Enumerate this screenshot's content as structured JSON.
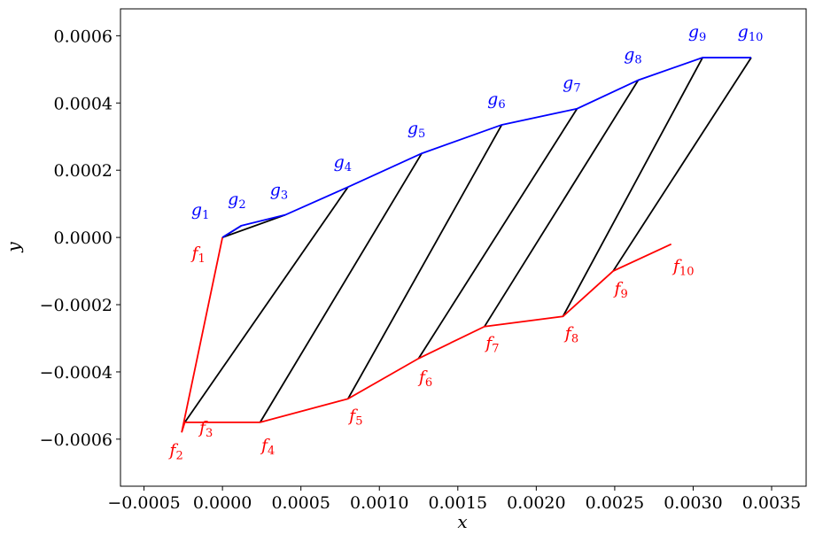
{
  "chart_data": {
    "type": "line",
    "xlabel": "x",
    "ylabel": "y",
    "xlim": [
      -0.00065,
      0.00372
    ],
    "ylim": [
      -0.00074,
      0.00068
    ],
    "x_ticks": [
      -0.0005,
      0.0,
      0.0005,
      0.001,
      0.0015,
      0.002,
      0.0025,
      0.003,
      0.0035
    ],
    "x_tick_labels": [
      "−0.0005",
      "0.0000",
      "0.0005",
      "0.0010",
      "0.0015",
      "0.0020",
      "0.0025",
      "0.0030",
      "0.0035"
    ],
    "y_ticks": [
      -0.0006,
      -0.0004,
      -0.0002,
      0.0,
      0.0002,
      0.0004,
      0.0006
    ],
    "y_tick_labels": [
      "−0.0006",
      "−0.0004",
      "−0.0002",
      "0.0000",
      "0.0002",
      "0.0004",
      "0.0006"
    ],
    "grid": false,
    "legend": "none",
    "series": [
      {
        "label_prefix": "f",
        "color": "#ff0000",
        "points": [
          {
            "label": "1",
            "x": 0.0,
            "y": 0.0
          },
          {
            "label": "2",
            "x": -0.00026,
            "y": -0.00058
          },
          {
            "label": "3",
            "x": -0.00024,
            "y": -0.00055
          },
          {
            "label": "4",
            "x": 0.00024,
            "y": -0.00055
          },
          {
            "label": "5",
            "x": 0.0008,
            "y": -0.00048
          },
          {
            "label": "6",
            "x": 0.00125,
            "y": -0.00036
          },
          {
            "label": "7",
            "x": 0.00167,
            "y": -0.000265
          },
          {
            "label": "8",
            "x": 0.00217,
            "y": -0.000235
          },
          {
            "label": "9",
            "x": 0.00249,
            "y": -0.0001
          },
          {
            "label": "10",
            "x": 0.00286,
            "y": -2e-05
          }
        ]
      },
      {
        "label_prefix": "g",
        "color": "#0000ff",
        "points": [
          {
            "label": "1",
            "x": 0.0,
            "y": 0.0
          },
          {
            "label": "2",
            "x": 0.00012,
            "y": 3.5e-05
          },
          {
            "label": "3",
            "x": 0.0004,
            "y": 6.7e-05
          },
          {
            "label": "4",
            "x": 0.0008,
            "y": 0.00015
          },
          {
            "label": "5",
            "x": 0.00127,
            "y": 0.00025
          },
          {
            "label": "6",
            "x": 0.00178,
            "y": 0.000335
          },
          {
            "label": "7",
            "x": 0.00226,
            "y": 0.000383
          },
          {
            "label": "8",
            "x": 0.00265,
            "y": 0.000468
          },
          {
            "label": "9",
            "x": 0.00306,
            "y": 0.000535
          },
          {
            "label": "10",
            "x": 0.00337,
            "y": 0.000535
          }
        ]
      }
    ],
    "connectors": {
      "color": "#000000",
      "pairs": [
        [
          1,
          1
        ],
        [
          1,
          2
        ],
        [
          1,
          3
        ],
        [
          3,
          4
        ],
        [
          4,
          5
        ],
        [
          5,
          6
        ],
        [
          6,
          7
        ],
        [
          7,
          8
        ],
        [
          8,
          9
        ],
        [
          9,
          10
        ]
      ]
    }
  }
}
